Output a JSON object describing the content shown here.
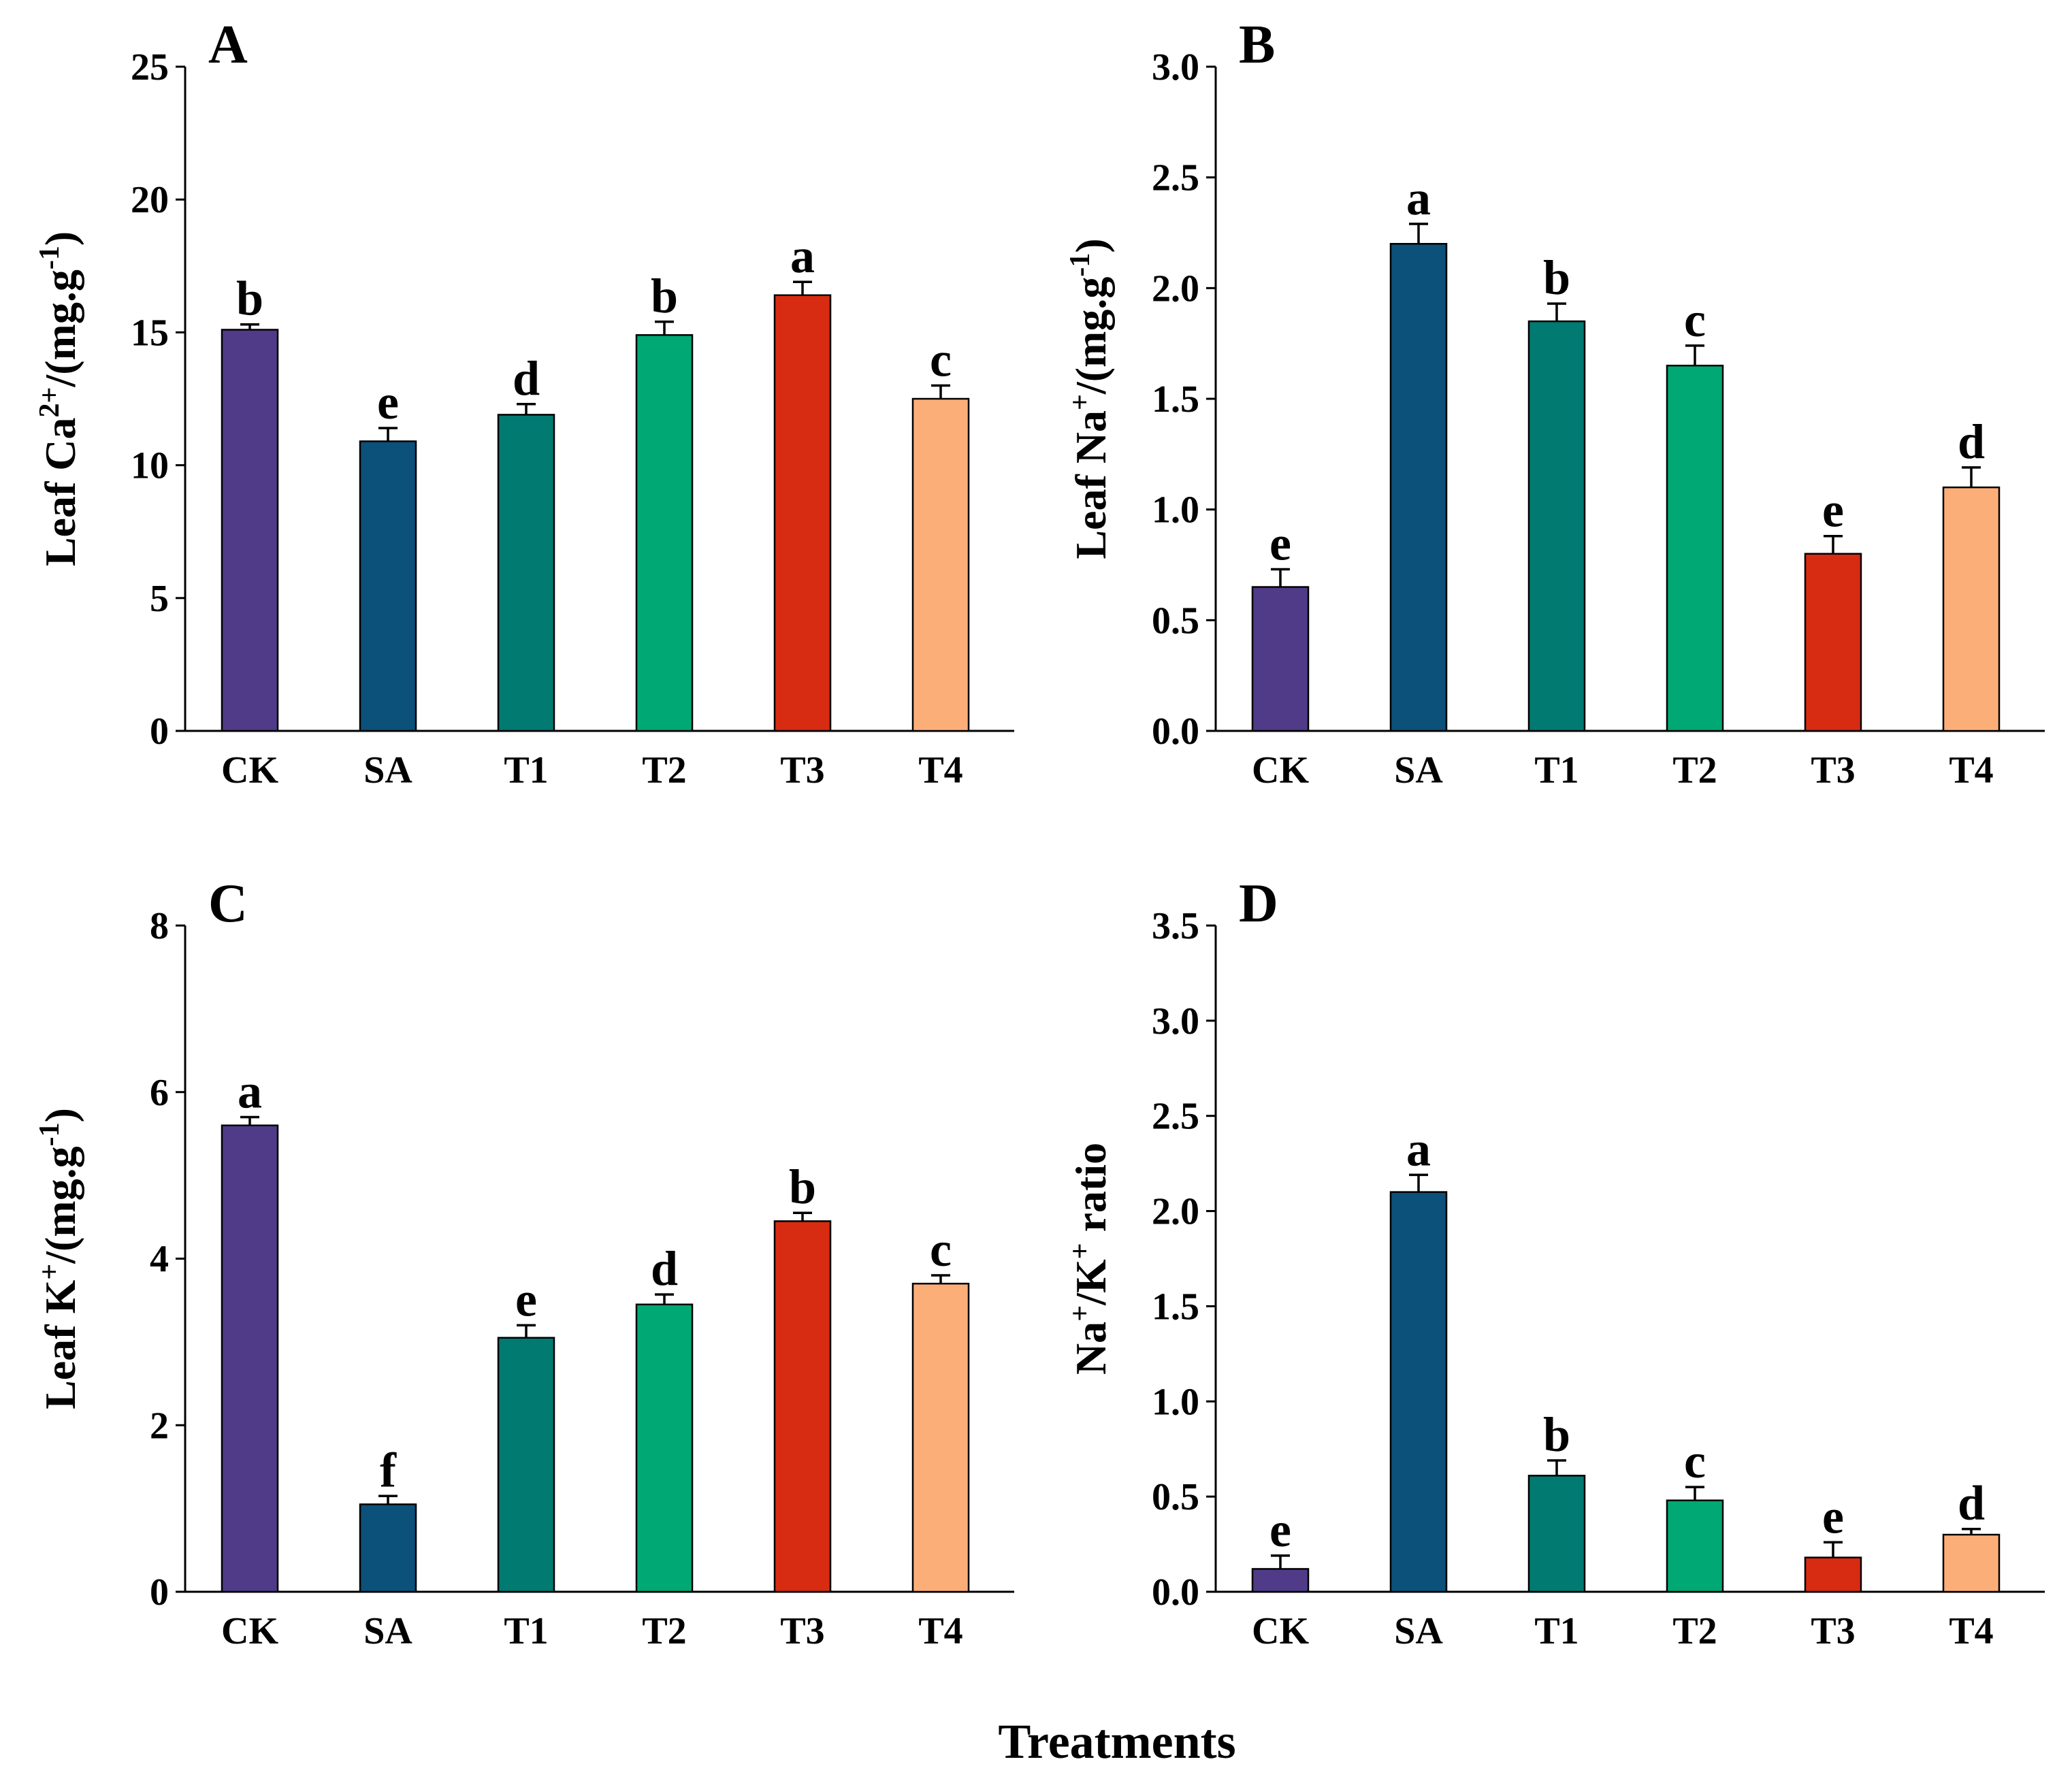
{
  "figure": {
    "x_axis_title": "Treatments",
    "categories": [
      "CK",
      "SA",
      "T1",
      "T2",
      "T3",
      "T4"
    ],
    "colors": [
      "#4F3B87",
      "#0B517A",
      "#017A72",
      "#00A874",
      "#D72B12",
      "#FCAE79"
    ]
  },
  "chart_data": [
    {
      "type": "bar",
      "panel": "A",
      "ylabel_parts": [
        {
          "t": "Leaf Ca",
          "s": ""
        },
        {
          "t": "2+",
          "s": "sup"
        },
        {
          "t": "/(mg.g",
          "s": ""
        },
        {
          "t": "-1",
          "s": "sup"
        },
        {
          "t": ")",
          "s": ""
        }
      ],
      "ylim": [
        0,
        25
      ],
      "yticks": [
        0,
        5,
        10,
        15,
        20,
        25
      ],
      "ytick_labels": [
        "0",
        "5",
        "10",
        "15",
        "20",
        "25"
      ],
      "categories": [
        "CK",
        "SA",
        "T1",
        "T2",
        "T3",
        "T4"
      ],
      "values": [
        15.1,
        10.9,
        11.9,
        14.9,
        16.4,
        12.5
      ],
      "errors": [
        0.2,
        0.5,
        0.4,
        0.5,
        0.5,
        0.5
      ],
      "significance": [
        "b",
        "e",
        "d",
        "b",
        "a",
        "c"
      ]
    },
    {
      "type": "bar",
      "panel": "B",
      "ylabel_parts": [
        {
          "t": "Leaf Na",
          "s": ""
        },
        {
          "t": "+",
          "s": "sup"
        },
        {
          "t": "/(mg.g",
          "s": ""
        },
        {
          "t": "-1",
          "s": "sup"
        },
        {
          "t": ")",
          "s": ""
        }
      ],
      "ylim": [
        0,
        3.0
      ],
      "yticks": [
        0,
        0.5,
        1.0,
        1.5,
        2.0,
        2.5,
        3.0
      ],
      "ytick_labels": [
        "0.0",
        "0.5",
        "1.0",
        "1.5",
        "2.0",
        "2.5",
        "3.0"
      ],
      "categories": [
        "CK",
        "SA",
        "T1",
        "T2",
        "T3",
        "T4"
      ],
      "values": [
        0.65,
        2.2,
        1.85,
        1.65,
        0.8,
        1.1
      ],
      "errors": [
        0.08,
        0.09,
        0.08,
        0.09,
        0.08,
        0.09
      ],
      "significance": [
        "e",
        "a",
        "b",
        "c",
        "e",
        "d"
      ]
    },
    {
      "type": "bar",
      "panel": "C",
      "ylabel_parts": [
        {
          "t": "Leaf K",
          "s": ""
        },
        {
          "t": "+",
          "s": "sup"
        },
        {
          "t": "/(mg.g",
          "s": ""
        },
        {
          "t": "-1",
          "s": "sup"
        },
        {
          "t": ")",
          "s": ""
        }
      ],
      "ylim": [
        0,
        8
      ],
      "yticks": [
        0,
        2,
        4,
        6,
        8
      ],
      "ytick_labels": [
        "0",
        "2",
        "4",
        "6",
        "8"
      ],
      "categories": [
        "CK",
        "SA",
        "T1",
        "T2",
        "T3",
        "T4"
      ],
      "values": [
        5.6,
        1.05,
        3.05,
        3.45,
        4.45,
        3.7
      ],
      "errors": [
        0.1,
        0.1,
        0.15,
        0.12,
        0.1,
        0.1
      ],
      "significance": [
        "a",
        "f",
        "e",
        "d",
        "b",
        "c"
      ]
    },
    {
      "type": "bar",
      "panel": "D",
      "ylabel_parts": [
        {
          "t": "Na",
          "s": ""
        },
        {
          "t": "+",
          "s": "sup"
        },
        {
          "t": "/K",
          "s": ""
        },
        {
          "t": "+",
          "s": "sup"
        },
        {
          "t": " ratio",
          "s": ""
        }
      ],
      "ylim": [
        0,
        3.5
      ],
      "yticks": [
        0,
        0.5,
        1.0,
        1.5,
        2.0,
        2.5,
        3.0,
        3.5
      ],
      "ytick_labels": [
        "0.0",
        "0.5",
        "1.0",
        "1.5",
        "2.0",
        "2.5",
        "3.0",
        "3.5"
      ],
      "categories": [
        "CK",
        "SA",
        "T1",
        "T2",
        "T3",
        "T4"
      ],
      "values": [
        0.12,
        2.1,
        0.61,
        0.48,
        0.18,
        0.3
      ],
      "errors": [
        0.07,
        0.09,
        0.08,
        0.07,
        0.08,
        0.03
      ],
      "significance": [
        "e",
        "a",
        "b",
        "c",
        "e",
        "d"
      ]
    }
  ]
}
